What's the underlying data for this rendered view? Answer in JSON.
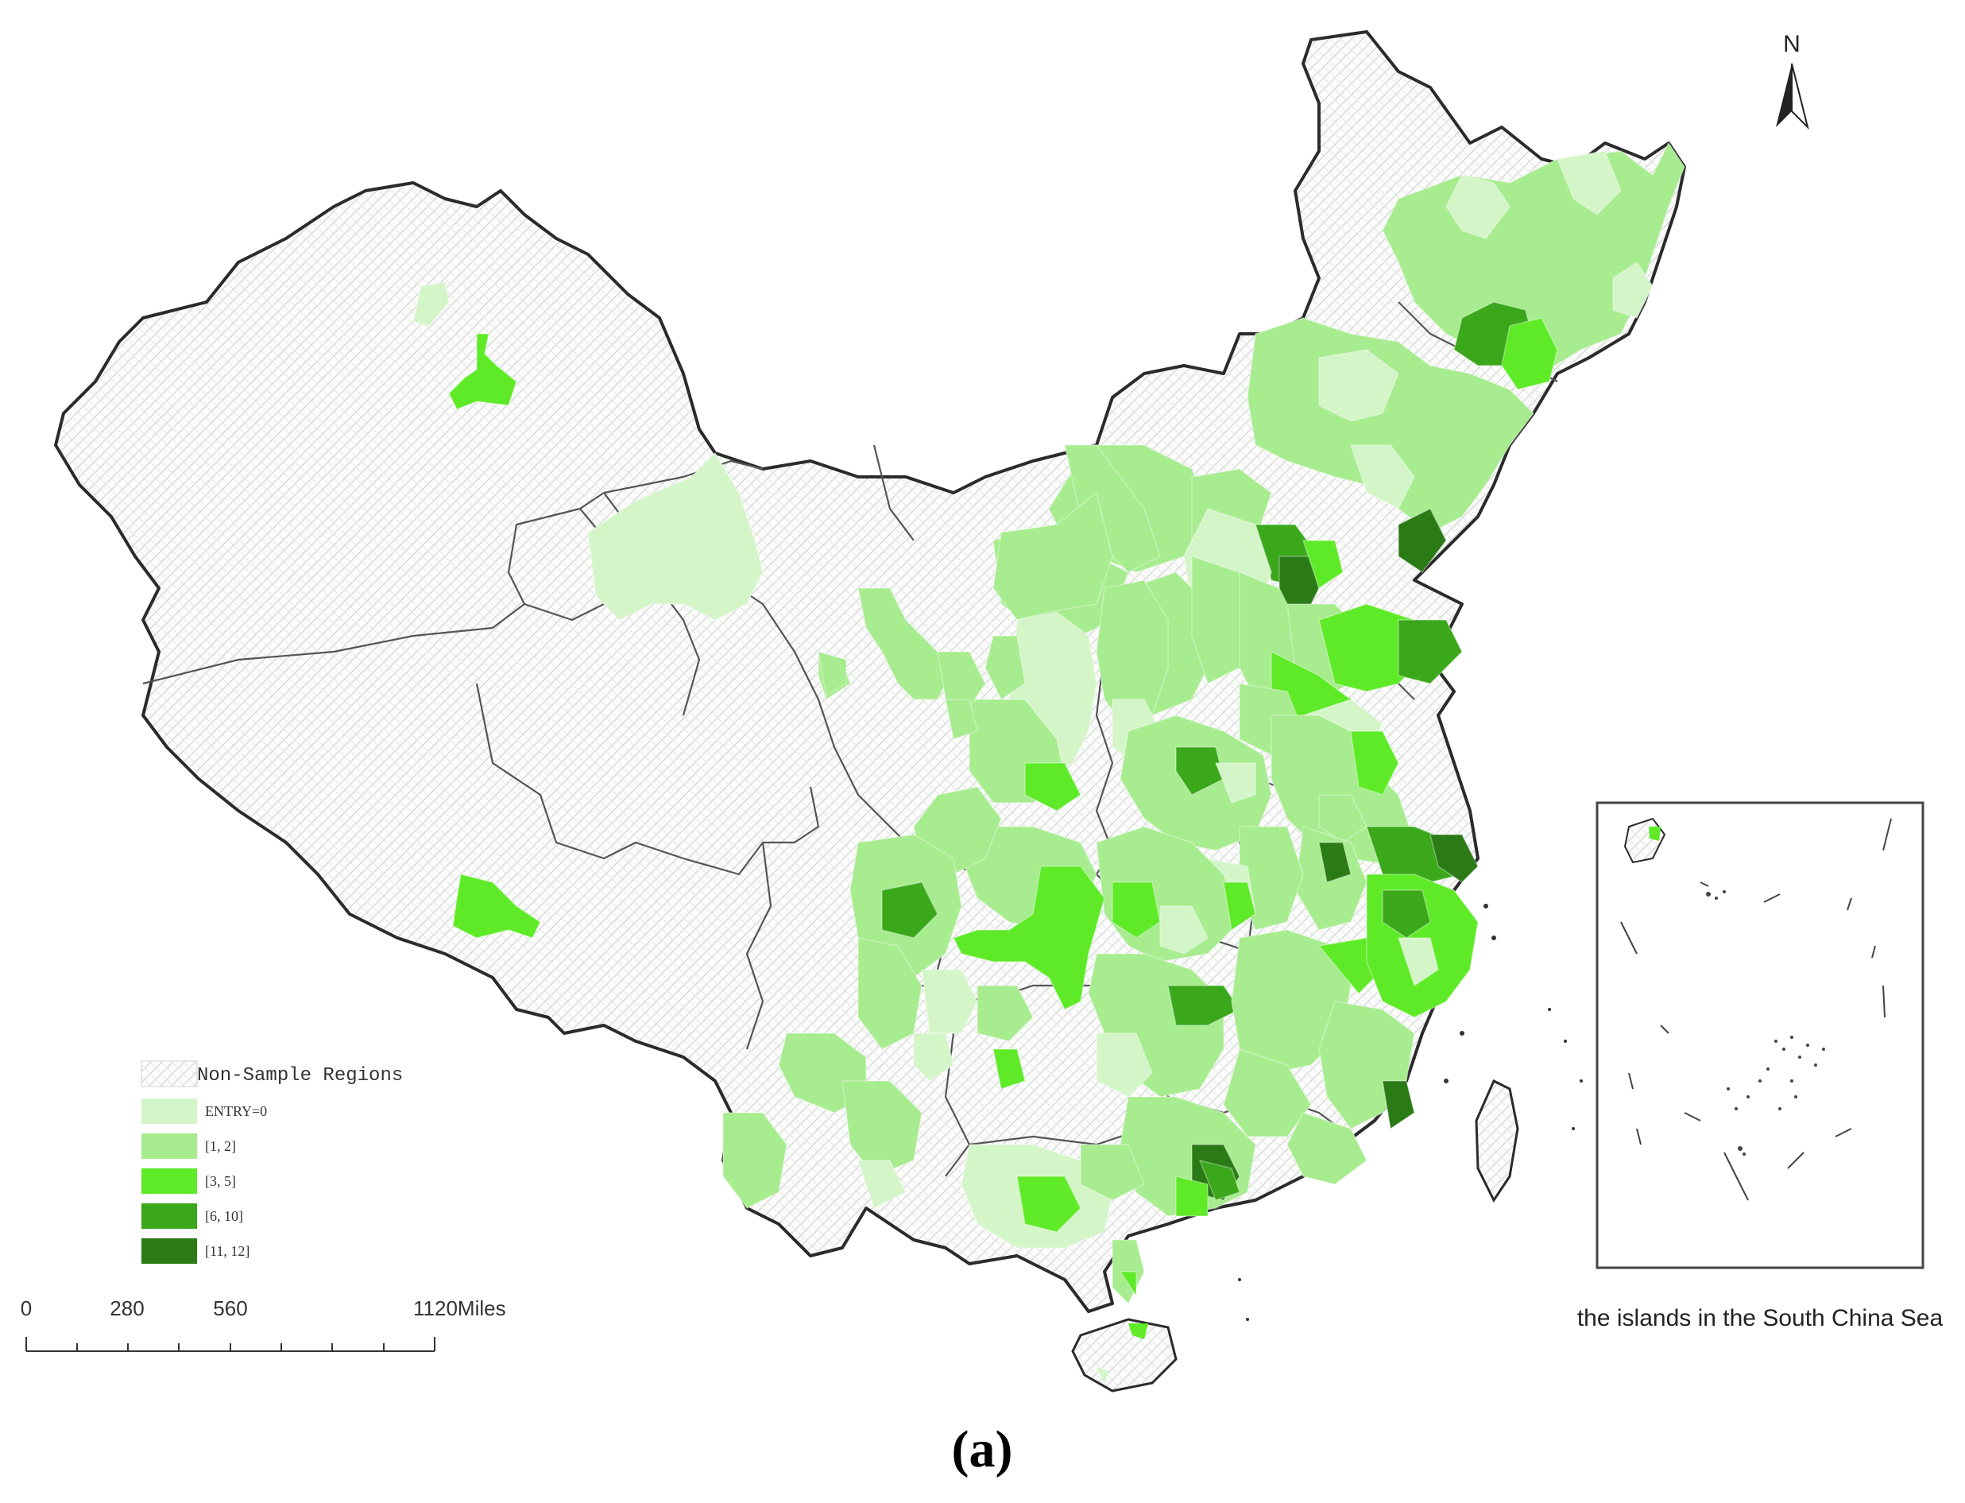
{
  "map": {
    "north_label": "N",
    "caption": "(a)",
    "legend": {
      "items": [
        {
          "label": "Non-Sample Regions",
          "color": "#f4f6f4",
          "kind": "hatch"
        },
        {
          "label": "ENTRY=0",
          "color": "#d4f5c8",
          "kind": "fill"
        },
        {
          "label": "[1, 2]",
          "color": "#a7ec8f",
          "kind": "fill"
        },
        {
          "label": "[3, 5]",
          "color": "#5fea28",
          "kind": "fill"
        },
        {
          "label": "[6, 10]",
          "color": "#3aa81a",
          "kind": "fill"
        },
        {
          "label": "[11, 12]",
          "color": "#2a7a16",
          "kind": "fill"
        }
      ]
    },
    "scale_bar": {
      "ticks": [
        "0",
        "280",
        "560",
        "1120Miles"
      ]
    },
    "inset": {
      "label": "the islands in the South China Sea"
    },
    "colors": {
      "border": "#333333",
      "coast": "#2b2b2b",
      "hatch": "#d8dcd8"
    }
  }
}
